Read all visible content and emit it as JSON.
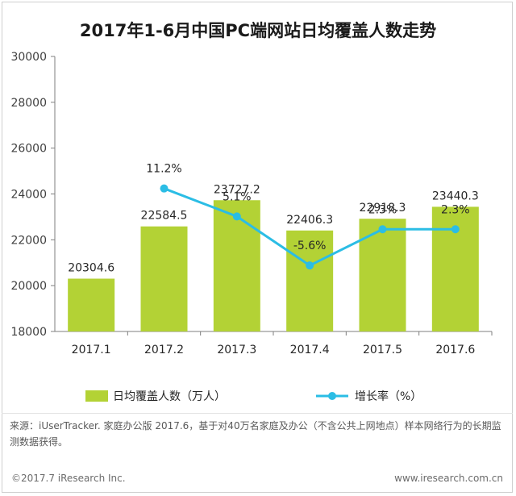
{
  "title": "2017年1-6月中国PC端网站日均覆盖人数走势",
  "chart_data": {
    "type": "bar",
    "categories": [
      "2017.1",
      "2017.2",
      "2017.3",
      "2017.4",
      "2017.5",
      "2017.6"
    ],
    "series": [
      {
        "name": "日均覆盖人数（万人）",
        "type": "bar",
        "values": [
          20304.6,
          22584.5,
          23727.2,
          22406.3,
          22918.3,
          23440.3
        ],
        "labels": [
          "20304.6",
          "22584.5",
          "23727.2",
          "22406.3",
          "22918.3",
          "23440.3"
        ],
        "color": "#b3d235"
      },
      {
        "name": "增长率（%）",
        "type": "line",
        "x": [
          "2017.2",
          "2017.3",
          "2017.4",
          "2017.5",
          "2017.6"
        ],
        "values": [
          11.2,
          5.1,
          -5.6,
          2.3,
          2.3
        ],
        "labels": [
          "11.2%",
          "5.1%",
          "-5.6%",
          "2.3%",
          "2.3%"
        ],
        "color": "#2bbde5"
      }
    ],
    "yticks": [
      "18000",
      "20000",
      "22000",
      "24000",
      "26000",
      "28000",
      "30000"
    ],
    "ylim": [
      18000,
      30000
    ],
    "grid": false,
    "legend": "bottom"
  },
  "source": "来源：iUserTracker. 家庭办公版 2017.6，基于对40万名家庭及办公（不含公共上网地点）样本网络行为的长期监测数据获得。",
  "footer": {
    "copyright": "©2017.7 iResearch Inc.",
    "website": "www.iresearch.com.cn"
  }
}
